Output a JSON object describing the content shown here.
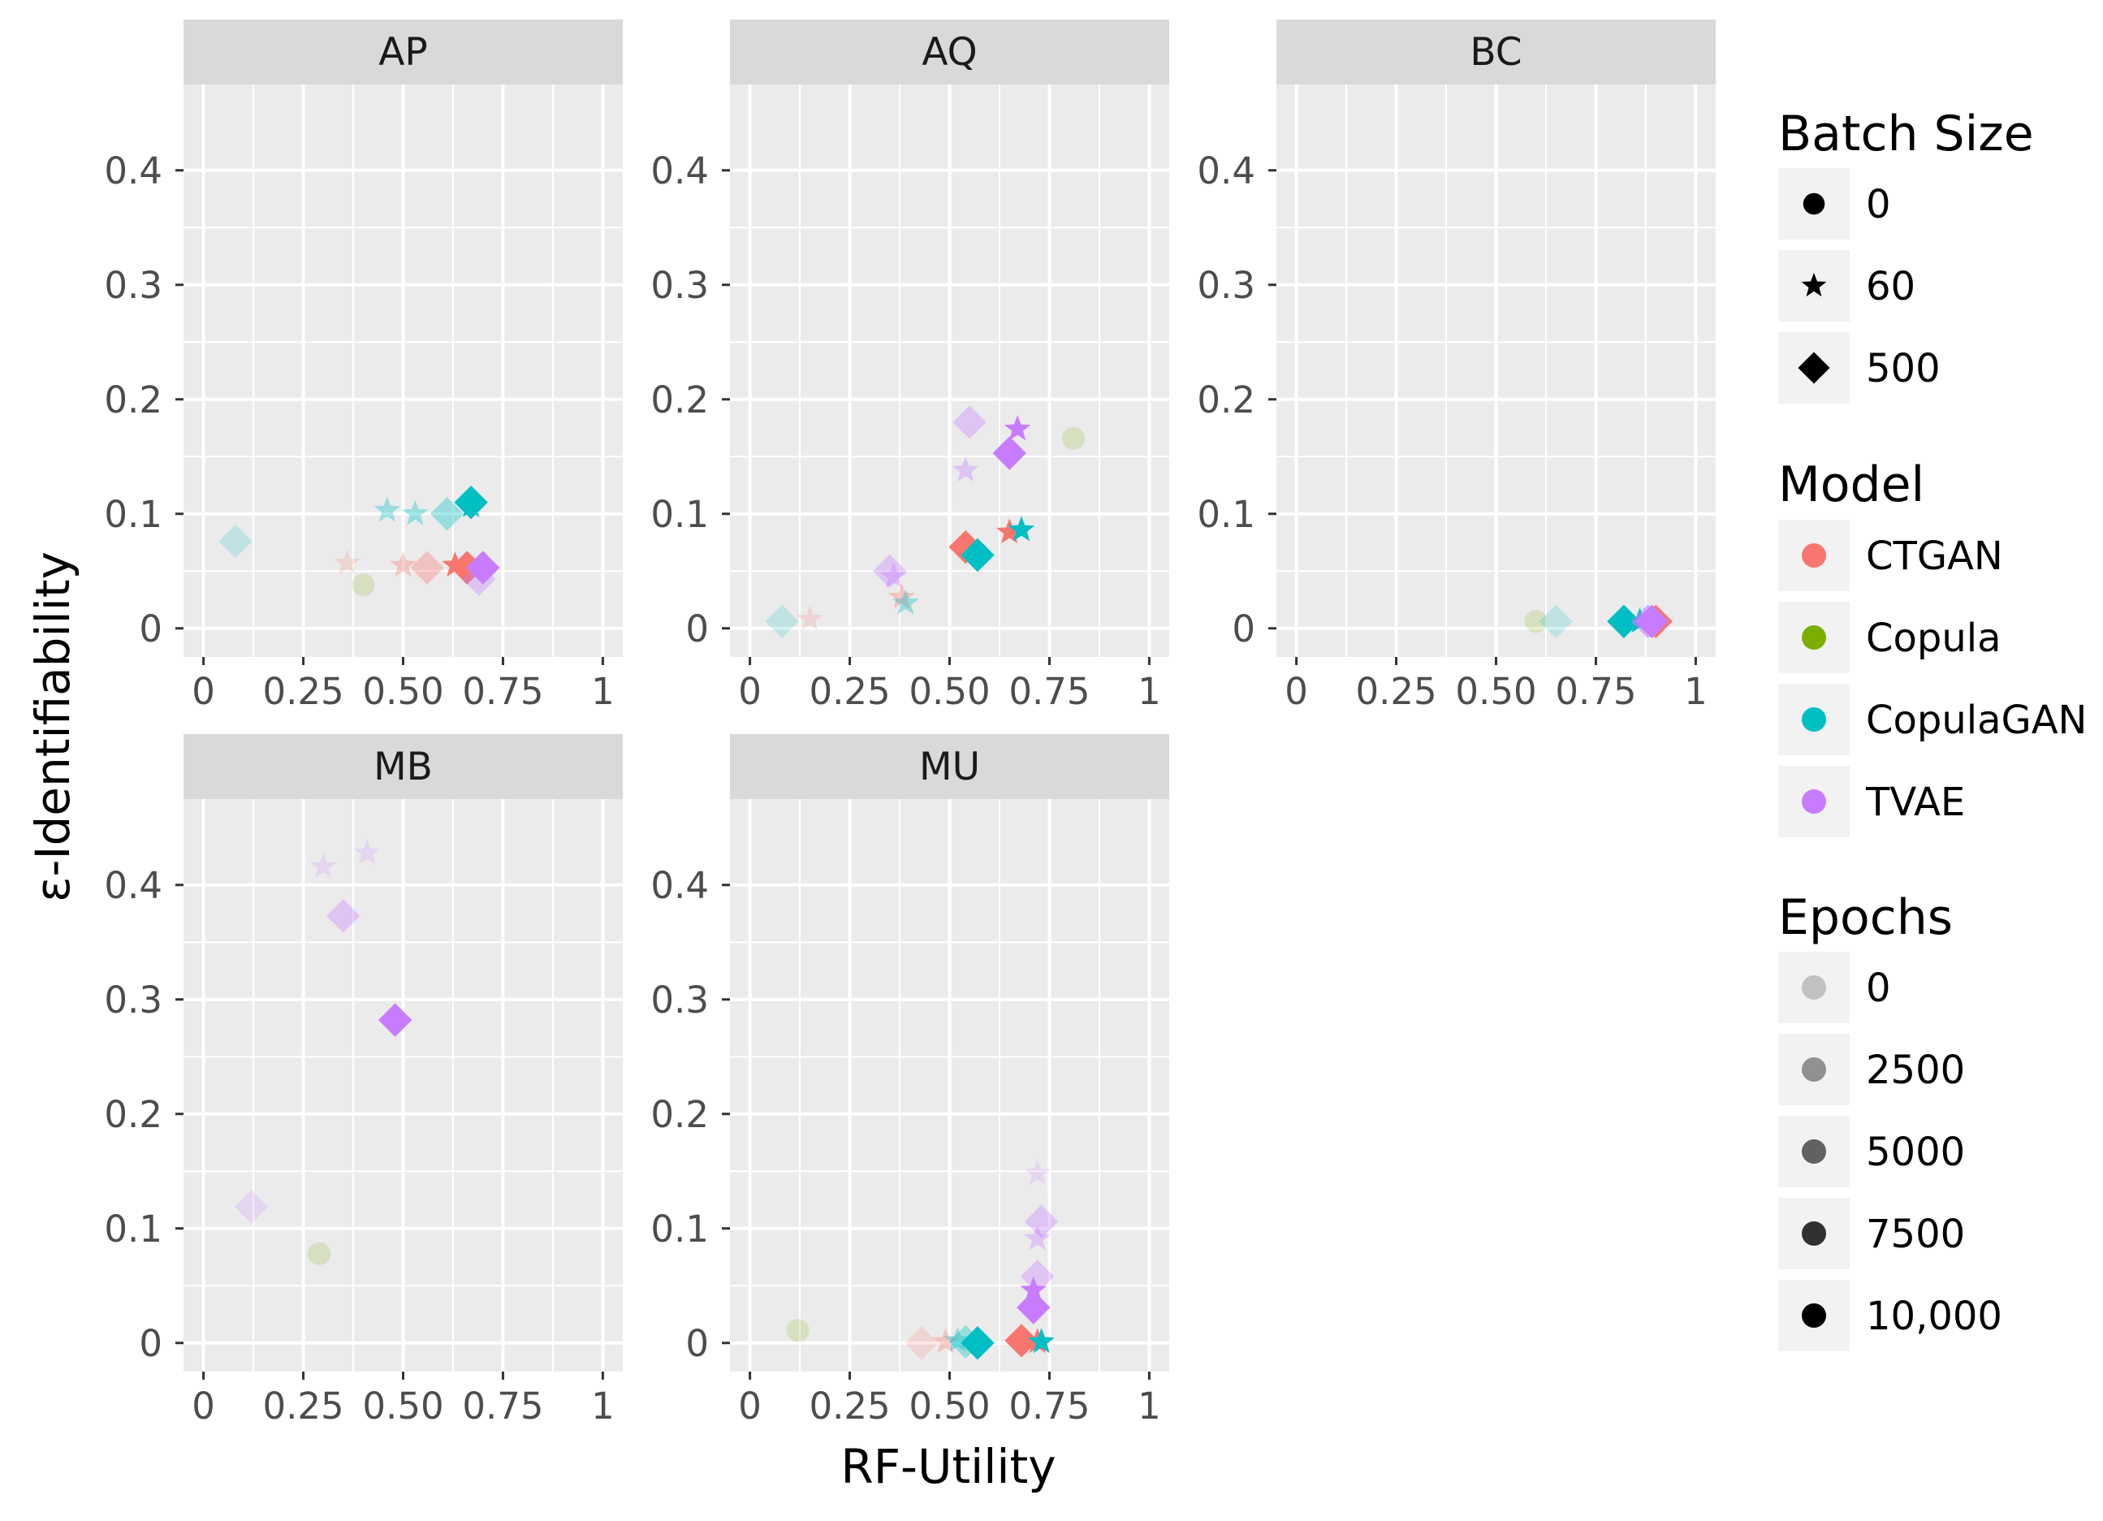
{
  "chart_data": {
    "type": "scatter",
    "facet_by": "Dataset",
    "xlabel": "RF-Utility",
    "ylabel": "ε-Identifiability",
    "xlim": [
      -0.05,
      1.05
    ],
    "ylim": [
      -0.025,
      0.475
    ],
    "x_ticks": [
      0,
      0.25,
      0.5,
      0.75,
      1
    ],
    "x_tick_labels": [
      "0",
      "0.25",
      "0.50",
      "0.75",
      "1"
    ],
    "y_ticks": [
      0,
      0.1,
      0.2,
      0.3,
      0.4
    ],
    "y_tick_labels": [
      "0",
      "0.1",
      "0.2",
      "0.3",
      "0.4"
    ],
    "colors": {
      "CTGAN": "#F8766D",
      "Copula": "#7CAE00",
      "CopulaGAN": "#00BFC4",
      "TVAE": "#C77CFF"
    },
    "legends": {
      "batch_size": {
        "title": "Batch Size",
        "items": [
          {
            "label": "0",
            "shape": "circle"
          },
          {
            "label": "60",
            "shape": "star"
          },
          {
            "label": "500",
            "shape": "diamond"
          }
        ]
      },
      "model": {
        "title": "Model",
        "items": [
          {
            "label": "CTGAN",
            "color": "#F8766D"
          },
          {
            "label": "Copula",
            "color": "#7CAE00"
          },
          {
            "label": "CopulaGAN",
            "color": "#00BFC4"
          },
          {
            "label": "TVAE",
            "color": "#C77CFF"
          }
        ]
      },
      "epochs": {
        "title": "Epochs",
        "items": [
          {
            "label": "0",
            "alpha": 0.2
          },
          {
            "label": "2500",
            "alpha": 0.4
          },
          {
            "label": "5000",
            "alpha": 0.6
          },
          {
            "label": "7500",
            "alpha": 0.8
          },
          {
            "label": "10,000",
            "alpha": 1.0
          }
        ]
      }
    },
    "panels": [
      {
        "name": "AP",
        "points": [
          {
            "model": "CopulaGAN",
            "shape": "diamond",
            "epochs": 0,
            "x": 0.08,
            "y": 0.076
          },
          {
            "model": "Copula",
            "shape": "circle",
            "epochs": 0,
            "x": 0.4,
            "y": 0.038
          },
          {
            "model": "CTGAN",
            "shape": "star",
            "epochs": 0,
            "x": 0.36,
            "y": 0.057
          },
          {
            "model": "CTGAN",
            "shape": "star",
            "epochs": 2500,
            "x": 0.5,
            "y": 0.055
          },
          {
            "model": "CTGAN",
            "shape": "diamond",
            "epochs": 2500,
            "x": 0.56,
            "y": 0.053
          },
          {
            "model": "CopulaGAN",
            "shape": "star",
            "epochs": 2500,
            "x": 0.46,
            "y": 0.103
          },
          {
            "model": "CopulaGAN",
            "shape": "star",
            "epochs": 2500,
            "x": 0.53,
            "y": 0.1
          },
          {
            "model": "CopulaGAN",
            "shape": "diamond",
            "epochs": 2500,
            "x": 0.61,
            "y": 0.1
          },
          {
            "model": "CopulaGAN",
            "shape": "star",
            "epochs": 10000,
            "x": 0.67,
            "y": 0.107
          },
          {
            "model": "CopulaGAN",
            "shape": "diamond",
            "epochs": 10000,
            "x": 0.67,
            "y": 0.11
          },
          {
            "model": "CTGAN",
            "shape": "star",
            "epochs": 10000,
            "x": 0.63,
            "y": 0.055
          },
          {
            "model": "CTGAN",
            "shape": "diamond",
            "epochs": 10000,
            "x": 0.66,
            "y": 0.053
          },
          {
            "model": "TVAE",
            "shape": "diamond",
            "epochs": 2500,
            "x": 0.69,
            "y": 0.043
          },
          {
            "model": "TVAE",
            "shape": "diamond",
            "epochs": 10000,
            "x": 0.7,
            "y": 0.053
          }
        ]
      },
      {
        "name": "AQ",
        "points": [
          {
            "model": "CopulaGAN",
            "shape": "diamond",
            "epochs": 0,
            "x": 0.08,
            "y": 0.006
          },
          {
            "model": "CTGAN",
            "shape": "star",
            "epochs": 0,
            "x": 0.15,
            "y": 0.008
          },
          {
            "model": "TVAE",
            "shape": "diamond",
            "epochs": 2500,
            "x": 0.35,
            "y": 0.05
          },
          {
            "model": "TVAE",
            "shape": "star",
            "epochs": 2500,
            "x": 0.36,
            "y": 0.045
          },
          {
            "model": "CTGAN",
            "shape": "star",
            "epochs": 2500,
            "x": 0.38,
            "y": 0.027
          },
          {
            "model": "CopulaGAN",
            "shape": "star",
            "epochs": 2500,
            "x": 0.39,
            "y": 0.022
          },
          {
            "model": "TVAE",
            "shape": "star",
            "epochs": 2500,
            "x": 0.54,
            "y": 0.138
          },
          {
            "model": "TVAE",
            "shape": "diamond",
            "epochs": 2500,
            "x": 0.55,
            "y": 0.18
          },
          {
            "model": "Copula",
            "shape": "circle",
            "epochs": 0,
            "x": 0.81,
            "y": 0.166
          },
          {
            "model": "TVAE",
            "shape": "star",
            "epochs": 10000,
            "x": 0.67,
            "y": 0.174
          },
          {
            "model": "TVAE",
            "shape": "diamond",
            "epochs": 10000,
            "x": 0.65,
            "y": 0.153
          },
          {
            "model": "CTGAN",
            "shape": "diamond",
            "epochs": 10000,
            "x": 0.54,
            "y": 0.071
          },
          {
            "model": "CopulaGAN",
            "shape": "diamond",
            "epochs": 10000,
            "x": 0.57,
            "y": 0.064
          },
          {
            "model": "CTGAN",
            "shape": "star",
            "epochs": 10000,
            "x": 0.65,
            "y": 0.084
          },
          {
            "model": "CopulaGAN",
            "shape": "star",
            "epochs": 10000,
            "x": 0.68,
            "y": 0.086
          }
        ]
      },
      {
        "name": "BC",
        "points": [
          {
            "model": "Copula",
            "shape": "circle",
            "epochs": 0,
            "x": 0.6,
            "y": 0.006
          },
          {
            "model": "CopulaGAN",
            "shape": "diamond",
            "epochs": 0,
            "x": 0.65,
            "y": 0.006
          },
          {
            "model": "CopulaGAN",
            "shape": "diamond",
            "epochs": 10000,
            "x": 0.82,
            "y": 0.006
          },
          {
            "model": "CopulaGAN",
            "shape": "star",
            "epochs": 10000,
            "x": 0.86,
            "y": 0.006
          },
          {
            "model": "TVAE",
            "shape": "diamond",
            "epochs": 5000,
            "x": 0.88,
            "y": 0.006
          },
          {
            "model": "CTGAN",
            "shape": "diamond",
            "epochs": 10000,
            "x": 0.9,
            "y": 0.006
          },
          {
            "model": "TVAE",
            "shape": "diamond",
            "epochs": 10000,
            "x": 0.89,
            "y": 0.006
          }
        ]
      },
      {
        "name": "MB",
        "points": [
          {
            "model": "TVAE",
            "shape": "diamond",
            "epochs": 0,
            "x": 0.12,
            "y": 0.119
          },
          {
            "model": "Copula",
            "shape": "circle",
            "epochs": 0,
            "x": 0.29,
            "y": 0.078
          },
          {
            "model": "TVAE",
            "shape": "star",
            "epochs": 0,
            "x": 0.3,
            "y": 0.416
          },
          {
            "model": "TVAE",
            "shape": "star",
            "epochs": 0,
            "x": 0.41,
            "y": 0.428
          },
          {
            "model": "TVAE",
            "shape": "diamond",
            "epochs": 2500,
            "x": 0.35,
            "y": 0.373
          },
          {
            "model": "TVAE",
            "shape": "diamond",
            "epochs": 10000,
            "x": 0.48,
            "y": 0.282
          }
        ]
      },
      {
        "name": "MU",
        "points": [
          {
            "model": "Copula",
            "shape": "circle",
            "epochs": 0,
            "x": 0.12,
            "y": 0.011
          },
          {
            "model": "CTGAN",
            "shape": "diamond",
            "epochs": 0,
            "x": 0.43,
            "y": 0.0
          },
          {
            "model": "CTGAN",
            "shape": "star",
            "epochs": 2500,
            "x": 0.49,
            "y": 0.001
          },
          {
            "model": "CopulaGAN",
            "shape": "star",
            "epochs": 2500,
            "x": 0.52,
            "y": 0.002
          },
          {
            "model": "CopulaGAN",
            "shape": "diamond",
            "epochs": 2500,
            "x": 0.54,
            "y": 0.001
          },
          {
            "model": "CopulaGAN",
            "shape": "diamond",
            "epochs": 10000,
            "x": 0.57,
            "y": 0.0
          },
          {
            "model": "CTGAN",
            "shape": "diamond",
            "epochs": 10000,
            "x": 0.68,
            "y": 0.002
          },
          {
            "model": "CTGAN",
            "shape": "star",
            "epochs": 10000,
            "x": 0.72,
            "y": 0.001
          },
          {
            "model": "CopulaGAN",
            "shape": "star",
            "epochs": 10000,
            "x": 0.73,
            "y": 0.001
          },
          {
            "model": "TVAE",
            "shape": "star",
            "epochs": 0,
            "x": 0.72,
            "y": 0.148
          },
          {
            "model": "TVAE",
            "shape": "diamond",
            "epochs": 2500,
            "x": 0.73,
            "y": 0.106
          },
          {
            "model": "TVAE",
            "shape": "star",
            "epochs": 2500,
            "x": 0.72,
            "y": 0.091
          },
          {
            "model": "TVAE",
            "shape": "diamond",
            "epochs": 2500,
            "x": 0.72,
            "y": 0.058
          },
          {
            "model": "TVAE",
            "shape": "star",
            "epochs": 10000,
            "x": 0.71,
            "y": 0.046
          },
          {
            "model": "TVAE",
            "shape": "diamond",
            "epochs": 10000,
            "x": 0.71,
            "y": 0.031
          }
        ]
      }
    ]
  }
}
